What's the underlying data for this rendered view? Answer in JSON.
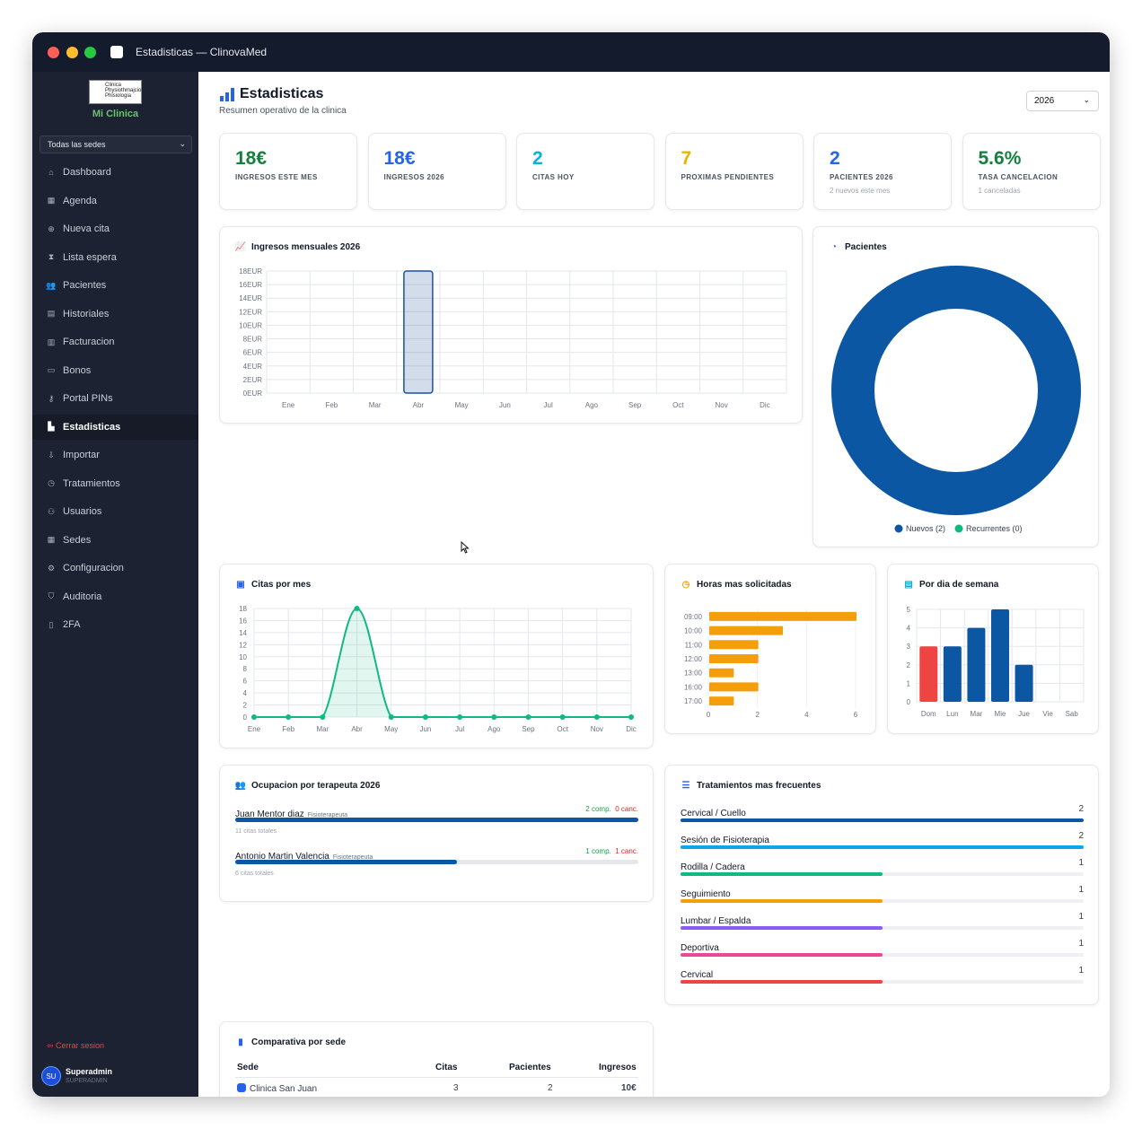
{
  "window": {
    "title": "Estadisticas — ClinovaMed"
  },
  "sidebar": {
    "logo_text": "Clinica Physiothmajcio Phisiologia",
    "clinic_name": "Mi Clinica",
    "sede_select": "Todas las sedes",
    "items": [
      {
        "label": "Dashboard",
        "icon": "home-icon"
      },
      {
        "label": "Agenda",
        "icon": "calendar-icon"
      },
      {
        "label": "Nueva cita",
        "icon": "plus-circle-icon"
      },
      {
        "label": "Lista espera",
        "icon": "hourglass-icon"
      },
      {
        "label": "Pacientes",
        "icon": "users-icon"
      },
      {
        "label": "Historiales",
        "icon": "file-icon"
      },
      {
        "label": "Facturacion",
        "icon": "invoice-icon"
      },
      {
        "label": "Bonos",
        "icon": "ticket-icon"
      },
      {
        "label": "Portal PINs",
        "icon": "key-icon"
      },
      {
        "label": "Estadisticas",
        "icon": "bar-chart-icon",
        "active": true
      },
      {
        "label": "Importar",
        "icon": "import-icon"
      },
      {
        "label": "Tratamientos",
        "icon": "clock-icon"
      },
      {
        "label": "Usuarios",
        "icon": "user-gear-icon"
      },
      {
        "label": "Sedes",
        "icon": "building-icon"
      },
      {
        "label": "Configuracion",
        "icon": "gear-icon"
      },
      {
        "label": "Auditoria",
        "icon": "shield-icon"
      },
      {
        "label": "2FA",
        "icon": "phone-icon"
      }
    ],
    "logout": "Cerrar sesion",
    "user": {
      "initials": "SU",
      "name": "Superadmin",
      "role": "SUPERADMIN"
    }
  },
  "header": {
    "title": "Estadisticas",
    "subtitle": "Resumen operativo de la clinica",
    "year": "2026"
  },
  "kpis": [
    {
      "value": "18€",
      "label": "INGRESOS ESTE MES",
      "sub": "",
      "color": "#15803d"
    },
    {
      "value": "18€",
      "label": "INGRESOS 2026",
      "sub": "",
      "color": "#2563eb"
    },
    {
      "value": "2",
      "label": "CITAS HOY",
      "sub": "",
      "color": "#06b6d4"
    },
    {
      "value": "7",
      "label": "PROXIMAS PENDIENTES",
      "sub": "",
      "color": "#eab308"
    },
    {
      "value": "2",
      "label": "PACIENTES 2026",
      "sub": "2 nuevos este mes",
      "color": "#2563eb"
    },
    {
      "value": "5.6%",
      "label": "TASA CANCELACION",
      "sub": "1 canceladas",
      "color": "#15803d"
    }
  ],
  "cards": {
    "ingresos_title": "Ingresos mensuales 2026",
    "pacientes_title": "Pacientes",
    "citas_title": "Citas por mes",
    "horas_title": "Horas mas solicitadas",
    "dia_title": "Por dia de semana",
    "ocupacion_title": "Ocupacion por terapeuta 2026",
    "tratamientos_title": "Tratamientos mas frecuentes",
    "comparativa_title": "Comparativa por sede"
  },
  "chart_data": [
    {
      "type": "bar",
      "title": "Ingresos mensuales 2026",
      "categories": [
        "Ene",
        "Feb",
        "Mar",
        "Abr",
        "May",
        "Jun",
        "Jul",
        "Ago",
        "Sep",
        "Oct",
        "Nov",
        "Dic"
      ],
      "values": [
        0,
        0,
        0,
        18,
        0,
        0,
        0,
        0,
        0,
        0,
        0,
        0
      ],
      "ylim": [
        0,
        18
      ],
      "yticks": [
        "0EUR",
        "2EUR",
        "4EUR",
        "6EUR",
        "8EUR",
        "10EUR",
        "12EUR",
        "14EUR",
        "16EUR",
        "18EUR"
      ],
      "color": "#1e4f9c"
    },
    {
      "type": "pie",
      "title": "Pacientes",
      "donut": true,
      "labels": [
        "Nuevos (2)",
        "Recurrentes (0)"
      ],
      "values": [
        2,
        0
      ],
      "colors": [
        "#0b57a4",
        "#10b981"
      ],
      "legend": "bottom"
    },
    {
      "type": "line",
      "title": "Citas por mes",
      "categories": [
        "Ene",
        "Feb",
        "Mar",
        "Abr",
        "May",
        "Jun",
        "Jul",
        "Ago",
        "Sep",
        "Oct",
        "Nov",
        "Dic"
      ],
      "values": [
        0,
        0,
        0,
        18,
        0,
        0,
        0,
        0,
        0,
        0,
        0,
        0
      ],
      "ylim": [
        0,
        18
      ],
      "yticks": [
        0,
        2,
        4,
        6,
        8,
        10,
        12,
        14,
        16,
        18
      ],
      "color": "#10b981"
    },
    {
      "type": "bar",
      "orientation": "horizontal",
      "title": "Horas mas solicitadas",
      "categories": [
        "09:00",
        "10:00",
        "11:00",
        "12:00",
        "13:00",
        "16:00",
        "17:00"
      ],
      "values": [
        6,
        3,
        2,
        2,
        1,
        2,
        1
      ],
      "xlim": [
        0,
        6
      ],
      "xticks": [
        0,
        2,
        4,
        6
      ],
      "color": "#f59e0b"
    },
    {
      "type": "bar",
      "title": "Por dia de semana",
      "categories": [
        "Dom",
        "Lun",
        "Mar",
        "Mie",
        "Jue",
        "Vie",
        "Sab"
      ],
      "values": [
        3,
        3,
        4,
        5,
        2,
        0,
        0
      ],
      "ylim": [
        0,
        5
      ],
      "yticks": [
        0,
        1,
        2,
        3,
        4,
        5
      ],
      "colors": [
        "#ef4444",
        "#0b57a4",
        "#0b57a4",
        "#0b57a4",
        "#0b57a4",
        "#0b57a4",
        "#0b57a4"
      ]
    }
  ],
  "therapists": [
    {
      "name": "Juan Mentor diaz",
      "role": "Fisioterapeuta",
      "comp": "2 comp.",
      "canc": "0 canc.",
      "total": "11 citas totales",
      "fill": 1.0
    },
    {
      "name": "Antonio Martin Valencia",
      "role": "Fisioterapeuta",
      "comp": "1 comp.",
      "canc": "1 canc.",
      "total": "6 citas totales",
      "fill": 0.55
    }
  ],
  "treatments": [
    {
      "name": "Cervical / Cuello",
      "count": "2",
      "fill": 1.0,
      "color": "#0b57a4"
    },
    {
      "name": "Sesión de Fisioterapia",
      "count": "2",
      "fill": 1.0,
      "color": "#0ea5e9"
    },
    {
      "name": "Rodilla / Cadera",
      "count": "1",
      "fill": 0.5,
      "color": "#10b981"
    },
    {
      "name": "Seguimiento",
      "count": "1",
      "fill": 0.5,
      "color": "#f59e0b"
    },
    {
      "name": "Lumbar / Espalda",
      "count": "1",
      "fill": 0.5,
      "color": "#8b5cf6"
    },
    {
      "name": "Deportiva",
      "count": "1",
      "fill": 0.5,
      "color": "#ec4899"
    },
    {
      "name": "Cervical",
      "count": "1",
      "fill": 0.5,
      "color": "#ef4444"
    }
  ],
  "comparativa": {
    "headers": [
      "Sede",
      "Citas",
      "Pacientes",
      "Ingresos"
    ],
    "rows": [
      {
        "sede": "Clinica San Juan",
        "citas": "3",
        "pacientes": "2",
        "ingresos": "10€"
      }
    ]
  }
}
